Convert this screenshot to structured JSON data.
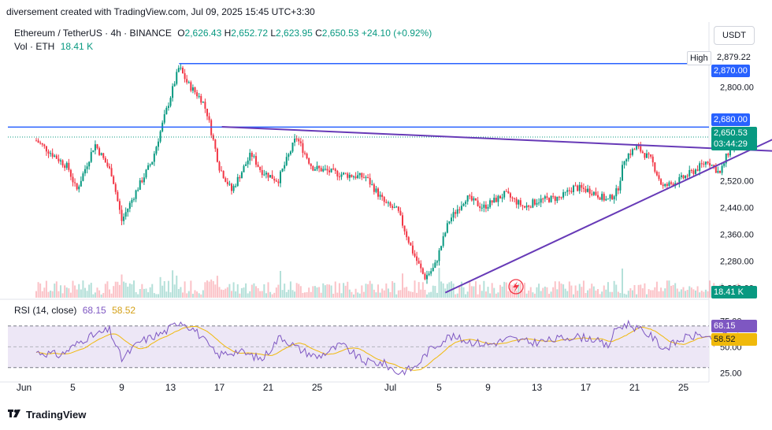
{
  "header": {
    "caption": "diversement created with TradingView.com, Jul 09, 2025 15:45 UTC+3:30"
  },
  "legend": {
    "symbol": "Ethereum / TetherUS · 4h · BINANCE",
    "o_label": "O",
    "o": "2,626.43",
    "h_label": "H",
    "h": "2,652.72",
    "l_label": "L",
    "l": "2,623.95",
    "c_label": "C",
    "c": "2,650.53",
    "change": "+24.10 (+0.92%)",
    "vol_label": "Vol · ETH",
    "vol": "18.41 K",
    "rsi_label": "RSI (14, close)",
    "rsi": "68.15",
    "rsi_ma": "58.52"
  },
  "currency": "USDT",
  "footer": {
    "brand": "TradingView"
  },
  "labels": {
    "high_text": "High",
    "high_value": "2,879.22",
    "level_2870": "2,870.00",
    "level_2680": "2,680.00",
    "last_price": "2,650.53",
    "countdown": "03:44:29",
    "volume": "18.41 K",
    "rsi_value": "68.15",
    "rsi_ma_value": "58.52"
  },
  "colors": {
    "up": "#089981",
    "down": "#f23645",
    "blue_line": "#2962ff",
    "trend": "#673ab7",
    "rsi": "#7e57c2",
    "rsi_ma": "#f0b90b",
    "rsi_band": "#ede7f6"
  },
  "chart_data": {
    "type": "candlestick",
    "x_tick_labels": [
      "Jun",
      "5",
      "9",
      "13",
      "17",
      "21",
      "25",
      "Jul",
      "5",
      "9",
      "13",
      "17",
      "21",
      "25"
    ],
    "price_axis_ticks": [
      "2,800.00",
      "2,520.00",
      "2,440.00",
      "2,360.00",
      "2,280.00",
      "2,200.00"
    ],
    "rsi_axis_ticks": [
      "75.00",
      "50.00",
      "25.00"
    ],
    "anchors": [
      [
        2.0,
        2640
      ],
      [
        4.6,
        2560
      ],
      [
        5.3,
        2490
      ],
      [
        6.8,
        2630
      ],
      [
        8.2,
        2540
      ],
      [
        9.0,
        2400
      ],
      [
        10.2,
        2490
      ],
      [
        11.5,
        2580
      ],
      [
        12.5,
        2710
      ],
      [
        13.7,
        2860
      ],
      [
        14.4,
        2810
      ],
      [
        15.6,
        2760
      ],
      [
        16.0,
        2720
      ],
      [
        17.0,
        2560
      ],
      [
        18.0,
        2490
      ],
      [
        19.6,
        2600
      ],
      [
        20.4,
        2550
      ],
      [
        21.8,
        2520
      ],
      [
        23.3,
        2650
      ],
      [
        24.6,
        2560
      ],
      [
        26.8,
        2540
      ],
      [
        29.0,
        2530
      ],
      [
        30.6,
        2450
      ],
      [
        31.6,
        2430
      ],
      [
        32.8,
        2310
      ],
      [
        33.8,
        2230
      ],
      [
        34.6,
        2260
      ],
      [
        35.8,
        2400
      ],
      [
        37.2,
        2470
      ],
      [
        38.6,
        2440
      ],
      [
        40.4,
        2480
      ],
      [
        42.0,
        2440
      ],
      [
        43.0,
        2460
      ],
      [
        45.0,
        2470
      ],
      [
        46.0,
        2500
      ],
      [
        47.4,
        2490
      ],
      [
        48.8,
        2460
      ],
      [
        49.6,
        2490
      ],
      [
        50.2,
        2590
      ],
      [
        51.2,
        2620
      ],
      [
        52.4,
        2580
      ],
      [
        53.3,
        2500
      ],
      [
        54.6,
        2520
      ],
      [
        55.9,
        2550
      ],
      [
        57.0,
        2580
      ],
      [
        58.0,
        2540
      ],
      [
        58.6,
        2600
      ],
      [
        59.6,
        2650
      ]
    ],
    "y_range": [
      2170,
      2900
    ],
    "x_range_days": [
      0,
      72
    ],
    "horizontal_levels": [
      2870.0,
      2680.0
    ],
    "last_price": 2650.53,
    "trendlines": [
      {
        "name": "descending",
        "from": [
          17.2,
          2681
        ],
        "to": [
          62.8,
          2608
        ]
      },
      {
        "name": "ascending",
        "from": [
          35.5,
          2185
        ],
        "to": [
          63.0,
          2655
        ]
      }
    ],
    "volume": {
      "last": 18.41,
      "unit": "K"
    },
    "rsi": {
      "period": 14,
      "last": 68.15,
      "ma_last": 58.52,
      "range": [
        20,
        82
      ],
      "bands": [
        70,
        30
      ],
      "anchors": [
        [
          2,
          45
        ],
        [
          4,
          42
        ],
        [
          6,
          58
        ],
        [
          8,
          66
        ],
        [
          9,
          38
        ],
        [
          10.5,
          55
        ],
        [
          12.5,
          64
        ],
        [
          13.8,
          75
        ],
        [
          15,
          66
        ],
        [
          16.8,
          42
        ],
        [
          18.5,
          46
        ],
        [
          20.5,
          38
        ],
        [
          22,
          60
        ],
        [
          23.5,
          48
        ],
        [
          25,
          40
        ],
        [
          27,
          52
        ],
        [
          28.8,
          36
        ],
        [
          30.5,
          34
        ],
        [
          31.6,
          25
        ],
        [
          33,
          30
        ],
        [
          34.2,
          47
        ],
        [
          35.8,
          60
        ],
        [
          37.2,
          56
        ],
        [
          39,
          52
        ],
        [
          40.8,
          58
        ],
        [
          42.5,
          54
        ],
        [
          44,
          56
        ],
        [
          46,
          60
        ],
        [
          47.5,
          58
        ],
        [
          48.8,
          50
        ],
        [
          49.5,
          68
        ],
        [
          50.5,
          72
        ],
        [
          52.4,
          60
        ],
        [
          53.4,
          48
        ],
        [
          55,
          58
        ],
        [
          56.5,
          62
        ],
        [
          57.5,
          53
        ],
        [
          58.6,
          66
        ],
        [
          59.6,
          70
        ]
      ]
    }
  }
}
